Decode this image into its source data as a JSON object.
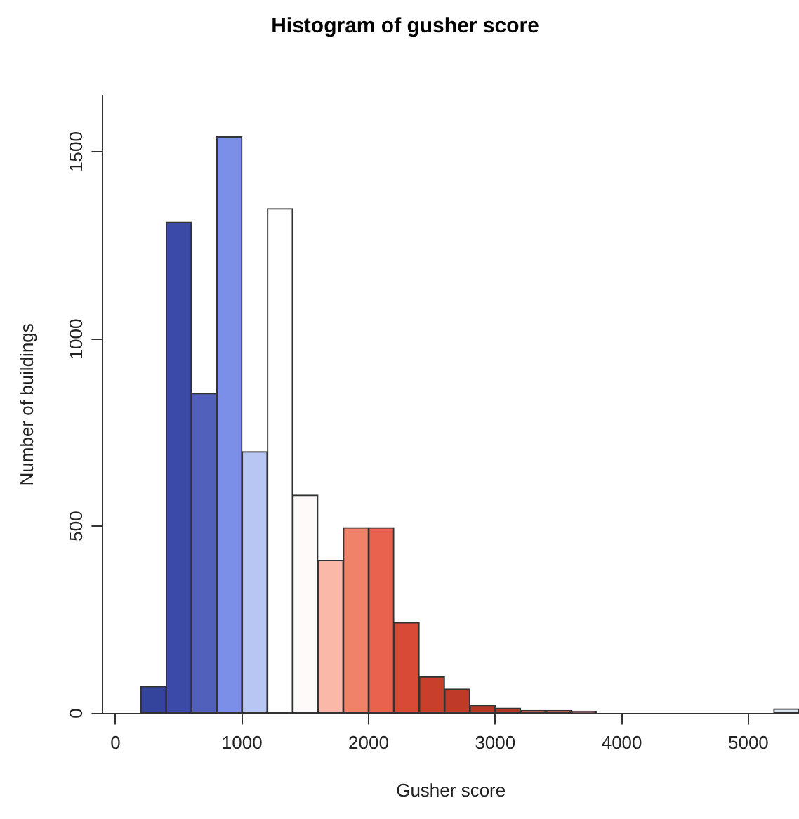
{
  "chart_data": {
    "type": "histogram",
    "title": "Histogram of gusher score",
    "xlabel": "Gusher score",
    "ylabel": "Number of buildings",
    "bins": [
      0,
      200,
      400,
      600,
      800,
      1000,
      1200,
      1400,
      1600,
      1800,
      2000,
      2200,
      2400,
      2600,
      2800,
      3000,
      3200,
      3400,
      3600,
      3800,
      4000,
      4200,
      4400,
      4600,
      4800,
      5000,
      5200,
      5400
    ],
    "values": [
      0,
      72,
      1312,
      855,
      1540,
      699,
      1348,
      583,
      409,
      496,
      496,
      243,
      98,
      65,
      22,
      14,
      8,
      8,
      6,
      0,
      0,
      0,
      0,
      0,
      0,
      0,
      12
    ],
    "colors": [
      "#2c3a8c",
      "#34449c",
      "#3a4aa6",
      "#5060bb",
      "#7b8fe8",
      "#b8c6f3",
      "#ffffff",
      "#fffafa",
      "#f9b8a8",
      "#f0826a",
      "#e8624e",
      "#d84a36",
      "#c83f2c",
      "#c03a28",
      "#b83626",
      "#b03424",
      "#b03424",
      "#b03424",
      "#b03424",
      "#c8d0dc",
      "#c8d0dc",
      "#c8d0dc",
      "#c8d0dc",
      "#c8d0dc",
      "#c8d0dc",
      "#c8d0dc",
      "#d8e4f4"
    ],
    "xlim": [
      -100,
      5400
    ],
    "xticks": [
      0,
      1000,
      2000,
      3000,
      4000,
      5000
    ],
    "ylim": [
      0,
      1650
    ],
    "yticks": [
      0,
      500,
      1000,
      1500
    ],
    "grid": false,
    "legend": false
  }
}
